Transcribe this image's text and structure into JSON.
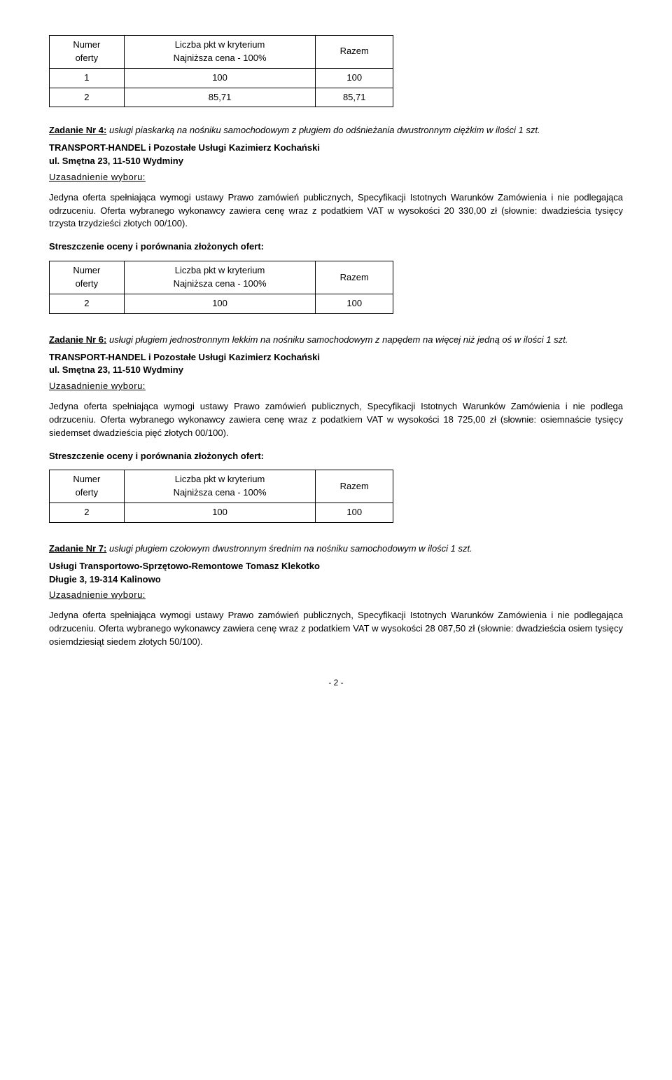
{
  "bid_table": {
    "col1_l1": "Numer",
    "col1_l2": "oferty",
    "col2_l1": "Liczba pkt w kryterium",
    "col2_l2": "Najniższa cena - 100%",
    "col3": "Razem"
  },
  "table1_rows": [
    {
      "num": "1",
      "pts": "100",
      "total": "100"
    },
    {
      "num": "2",
      "pts": "85,71",
      "total": "85,71"
    }
  ],
  "table2_rows": [
    {
      "num": "2",
      "pts": "100",
      "total": "100"
    }
  ],
  "table3_rows": [
    {
      "num": "2",
      "pts": "100",
      "total": "100"
    }
  ],
  "task4": {
    "label": "Zadanie Nr 4:",
    "desc": " usługi piaskarką na nośniku samochodowym z pługiem do odśnieżania dwustronnym ciężkim w ilości 1 szt.",
    "contractor_l1": "TRANSPORT-HANDEL i Pozostałe Usługi Kazimierz Kochański",
    "contractor_l2": "ul. Smętna 23, 11-510 Wydminy",
    "uzasad_label": "Uzasadnienie wyboru:",
    "justification": "Jedyna oferta spełniająca wymogi ustawy Prawo zamówień publicznych, Specyfikacji Istotnych Warunków Zamówienia i nie podlegająca odrzuceniu. Oferta wybranego wykonawcy zawiera cenę wraz z podatkiem VAT w wysokości 20 330,00 zł (słownie: dwadzieścia tysięcy trzysta trzydzieści złotych 00/100).",
    "summary_label": "Streszczenie oceny i porównania złożonych ofert:"
  },
  "task6": {
    "label": "Zadanie Nr 6:",
    "desc": " usługi pługiem jednostronnym lekkim na nośniku samochodowym z napędem na więcej niż jedną oś w ilości 1 szt.",
    "contractor_l1": "TRANSPORT-HANDEL i Pozostałe Usługi Kazimierz Kochański",
    "contractor_l2": "ul. Smętna 23, 11-510 Wydminy",
    "uzasad_label": "Uzasadnienie wyboru:",
    "justification": "Jedyna oferta spełniająca wymogi ustawy Prawo zamówień publicznych, Specyfikacji Istotnych Warunków Zamówienia i nie podlega odrzuceniu. Oferta wybranego wykonawcy zawiera cenę wraz z podatkiem VAT w wysokości 18 725,00 zł (słownie: osiemnaście tysięcy siedemset dwadzieścia pięć złotych 00/100).",
    "summary_label": "Streszczenie oceny i porównania złożonych ofert:"
  },
  "task7": {
    "label": "Zadanie Nr 7:",
    "desc": " usługi pługiem czołowym dwustronnym średnim na nośniku samochodowym w ilości 1 szt.",
    "contractor_l1": "Usługi Transportowo-Sprzętowo-Remontowe Tomasz Klekotko",
    "contractor_l2": "Długie 3, 19-314 Kalinowo",
    "uzasad_label": "Uzasadnienie wyboru:",
    "justification": "Jedyna oferta spełniająca wymogi ustawy Prawo zamówień publicznych, Specyfikacji Istotnych Warunków Zamówienia i nie podlegająca odrzuceniu. Oferta wybranego wykonawcy zawiera cenę wraz z podatkiem VAT w wysokości 28 087,50 zł (słownie: dwadzieścia osiem tysięcy osiemdziesiąt siedem złotych 50/100)."
  },
  "page_num": "- 2 -"
}
